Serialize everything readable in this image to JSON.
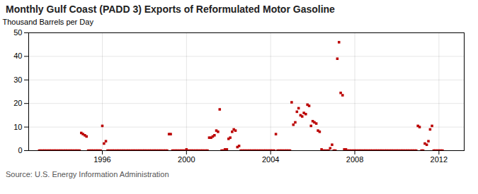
{
  "chart_data": {
    "type": "scatter",
    "title": "Monthly Gulf Coast (PADD 3) Exports of Reformulated Motor Gasoline",
    "ylabel": "Thousand Barrels per Day",
    "annotations": [
      "Source: U.S. Energy Information Administration"
    ],
    "color": "#bb0000",
    "marker": "square",
    "grid": true,
    "xlim": [
      1992.5,
      2013.2
    ],
    "ylim": [
      0,
      50
    ],
    "xticks": [
      1996,
      2000,
      2004,
      2008,
      2012
    ],
    "yticks": [
      0,
      10,
      20,
      30,
      40,
      50
    ],
    "x": [
      1993.0,
      1993.08,
      1993.17,
      1993.25,
      1993.33,
      1993.42,
      1993.5,
      1993.58,
      1993.67,
      1993.75,
      1993.83,
      1993.92,
      1994.0,
      1994.08,
      1994.17,
      1994.25,
      1994.33,
      1994.42,
      1994.5,
      1994.58,
      1994.67,
      1994.75,
      1994.83,
      1994.92,
      1995.0,
      1995.08,
      1995.17,
      1995.25,
      1995.33,
      1995.42,
      1995.5,
      1995.58,
      1995.67,
      1995.75,
      1995.83,
      1995.92,
      1996.0,
      1996.08,
      1996.17,
      1996.25,
      1996.33,
      1996.42,
      1996.5,
      1996.58,
      1996.67,
      1996.75,
      1996.83,
      1996.92,
      1997.0,
      1997.08,
      1997.17,
      1997.25,
      1997.33,
      1997.42,
      1997.5,
      1997.58,
      1997.67,
      1997.75,
      1997.83,
      1997.92,
      1998.0,
      1998.08,
      1998.17,
      1998.25,
      1998.33,
      1998.42,
      1998.5,
      1998.58,
      1998.67,
      1998.75,
      1998.83,
      1998.92,
      1999.0,
      1999.08,
      1999.17,
      1999.25,
      1999.33,
      1999.42,
      1999.5,
      1999.58,
      1999.67,
      1999.75,
      1999.83,
      1999.92,
      2000.0,
      2000.08,
      2000.17,
      2000.25,
      2000.33,
      2000.42,
      2000.5,
      2000.58,
      2000.67,
      2000.75,
      2000.83,
      2000.92,
      2001.0,
      2001.08,
      2001.17,
      2001.25,
      2001.33,
      2001.42,
      2001.5,
      2001.58,
      2001.67,
      2001.75,
      2001.83,
      2001.92,
      2002.0,
      2002.08,
      2002.17,
      2002.25,
      2002.33,
      2002.42,
      2002.5,
      2002.58,
      2002.67,
      2002.75,
      2002.83,
      2002.92,
      2003.0,
      2003.08,
      2003.17,
      2003.25,
      2003.33,
      2003.42,
      2003.5,
      2003.58,
      2003.67,
      2003.75,
      2003.83,
      2003.92,
      2004.0,
      2004.08,
      2004.17,
      2004.25,
      2004.33,
      2004.42,
      2004.5,
      2004.58,
      2004.67,
      2004.75,
      2004.83,
      2004.92,
      2005.0,
      2005.08,
      2005.17,
      2005.25,
      2005.33,
      2005.42,
      2005.5,
      2005.58,
      2005.67,
      2005.75,
      2005.83,
      2005.92,
      2006.0,
      2006.08,
      2006.17,
      2006.25,
      2006.33,
      2006.42,
      2006.5,
      2006.58,
      2006.67,
      2006.75,
      2006.83,
      2006.92,
      2007.0,
      2007.08,
      2007.17,
      2007.25,
      2007.33,
      2007.42,
      2007.5,
      2007.58,
      2007.67,
      2007.75,
      2007.83,
      2007.92,
      2008.0,
      2008.08,
      2008.17,
      2008.25,
      2008.33,
      2008.42,
      2008.5,
      2008.58,
      2008.67,
      2008.75,
      2008.83,
      2008.92,
      2009.0,
      2009.08,
      2009.17,
      2009.25,
      2009.33,
      2009.42,
      2009.5,
      2009.58,
      2009.67,
      2009.75,
      2009.83,
      2009.92,
      2010.0,
      2010.08,
      2010.17,
      2010.25,
      2010.33,
      2010.42,
      2010.5,
      2010.58,
      2010.67,
      2010.75,
      2010.83,
      2010.92,
      2011.0,
      2011.08,
      2011.17,
      2011.25,
      2011.33,
      2011.42,
      2011.5,
      2011.58,
      2011.67,
      2011.75,
      2011.83,
      2011.92,
      2012.0,
      2012.08,
      2012.17
    ],
    "values": [
      0,
      0,
      0,
      0,
      0,
      0,
      0,
      0,
      0,
      0,
      0,
      0,
      0,
      0,
      0,
      0,
      0,
      0,
      0,
      0,
      0,
      0,
      0,
      0,
      7.5,
      7.0,
      6.5,
      6.0,
      0,
      0,
      0,
      0,
      0,
      0,
      0,
      0,
      10.5,
      3.0,
      4.0,
      0,
      0,
      0,
      0,
      0,
      0,
      0,
      0,
      0,
      0,
      0,
      0,
      0,
      0,
      0,
      0,
      0,
      0,
      0,
      0,
      0,
      0,
      0,
      0,
      0,
      0,
      0,
      0,
      0,
      0,
      0,
      0,
      0,
      0,
      0,
      7.0,
      7.0,
      0,
      0,
      0,
      0,
      0,
      0,
      0,
      0,
      0.5,
      0,
      0,
      0,
      0,
      0,
      0,
      0,
      0,
      0,
      0,
      0,
      0,
      5.5,
      5.5,
      6.0,
      6.5,
      8.5,
      8.0,
      17.5,
      0,
      0,
      0.5,
      0.5,
      5.0,
      5.5,
      8.0,
      9.0,
      8.5,
      1.5,
      2.0,
      0,
      0,
      0,
      0,
      0,
      0,
      0,
      0,
      0,
      0,
      0,
      0,
      0,
      0,
      0,
      0,
      0,
      0,
      0,
      0,
      7.0,
      0,
      0,
      0,
      0,
      0,
      0,
      0,
      0,
      20.5,
      11.0,
      12.0,
      16.5,
      18.0,
      15.0,
      14.5,
      16.0,
      15.5,
      19.5,
      19.0,
      10.5,
      12.5,
      12.0,
      11.5,
      8.5,
      8.0,
      0.5,
      0,
      0,
      0,
      0,
      1.0,
      2.5,
      0,
      0,
      39.0,
      46.0,
      24.5,
      23.5,
      0.5,
      0.5,
      0,
      0,
      0,
      0,
      0,
      0,
      0,
      0,
      0,
      0,
      0,
      0,
      0,
      0,
      0,
      0,
      0,
      0,
      0,
      0,
      0,
      0,
      0,
      0,
      0,
      0,
      0,
      0,
      0,
      0,
      0,
      0,
      0,
      0,
      0,
      0,
      0,
      0,
      0,
      0,
      10.5,
      10.0,
      0,
      0,
      3.0,
      2.5,
      4.0,
      9.0,
      10.5,
      0,
      0,
      0,
      0,
      0,
      0
    ]
  }
}
